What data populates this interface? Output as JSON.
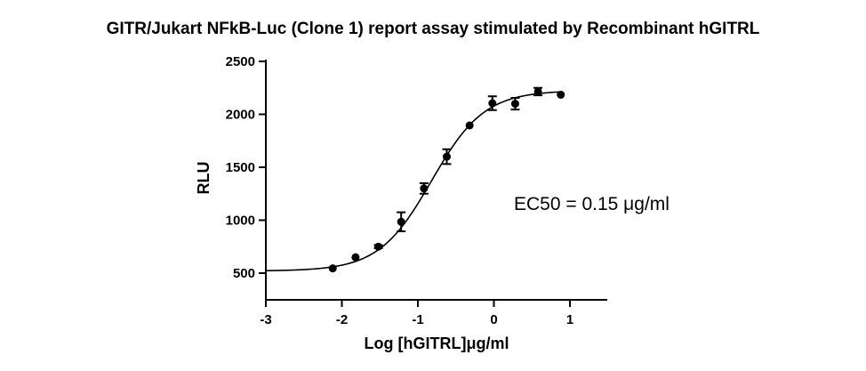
{
  "chart_data": {
    "type": "scatter",
    "title": "GITR/Jukart NFkB-Luc (Clone 1) report assay stimulated by Recombinant hGITRL",
    "xlabel": "Log [hGITRL]μg/ml",
    "ylabel": "RLU",
    "xlim": [
      -3,
      1.5
    ],
    "ylim": [
      250,
      2500
    ],
    "x_ticks": [
      -3,
      -2,
      -1,
      0,
      1
    ],
    "x_tick_labels": [
      "-3",
      "-2",
      "-1",
      "0",
      "1"
    ],
    "y_ticks": [
      500,
      1000,
      1500,
      2000,
      2500
    ],
    "y_tick_labels": [
      "500",
      "1000",
      "1500",
      "2000",
      "2500"
    ],
    "annotation": "EC50 = 0.15 μg/ml",
    "grid": false,
    "fit": {
      "model": "sigmoidal dose-response",
      "bottom": 520,
      "top": 2225,
      "logEC50": -0.82,
      "hill": 1.25
    },
    "points": [
      {
        "x": -2.12,
        "y": 545,
        "err": 10
      },
      {
        "x": -1.82,
        "y": 650,
        "err": 10
      },
      {
        "x": -1.52,
        "y": 750,
        "err": 15
      },
      {
        "x": -1.22,
        "y": 985,
        "err": 90
      },
      {
        "x": -0.92,
        "y": 1300,
        "err": 50
      },
      {
        "x": -0.62,
        "y": 1600,
        "err": 70
      },
      {
        "x": -0.32,
        "y": 1895,
        "err": 10
      },
      {
        "x": -0.02,
        "y": 2105,
        "err": 65
      },
      {
        "x": 0.28,
        "y": 2100,
        "err": 55
      },
      {
        "x": 0.58,
        "y": 2215,
        "err": 35
      },
      {
        "x": 0.88,
        "y": 2185,
        "err": 10
      }
    ]
  }
}
